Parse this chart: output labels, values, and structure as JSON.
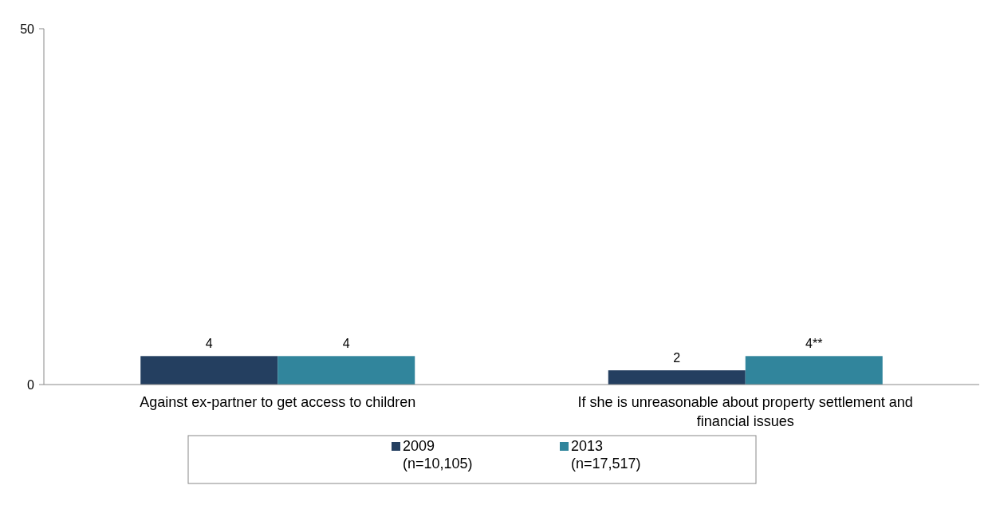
{
  "chart_data": {
    "type": "bar",
    "categories": [
      "Against ex-partner to get access to children",
      "If she is unreasonable about property settlement and financial issues"
    ],
    "series": [
      {
        "name": "2009 (n=10,105)",
        "color": "#243f60",
        "values": [
          4,
          2
        ],
        "value_labels": [
          "4",
          "2"
        ]
      },
      {
        "name": "2013 (n=17,517)",
        "color": "#31859c",
        "values": [
          4,
          4
        ],
        "value_labels": [
          "4",
          "4**"
        ]
      }
    ],
    "ylim": [
      0,
      50
    ],
    "yticks": [
      0,
      50
    ],
    "grid": false,
    "legend": "bottom"
  }
}
